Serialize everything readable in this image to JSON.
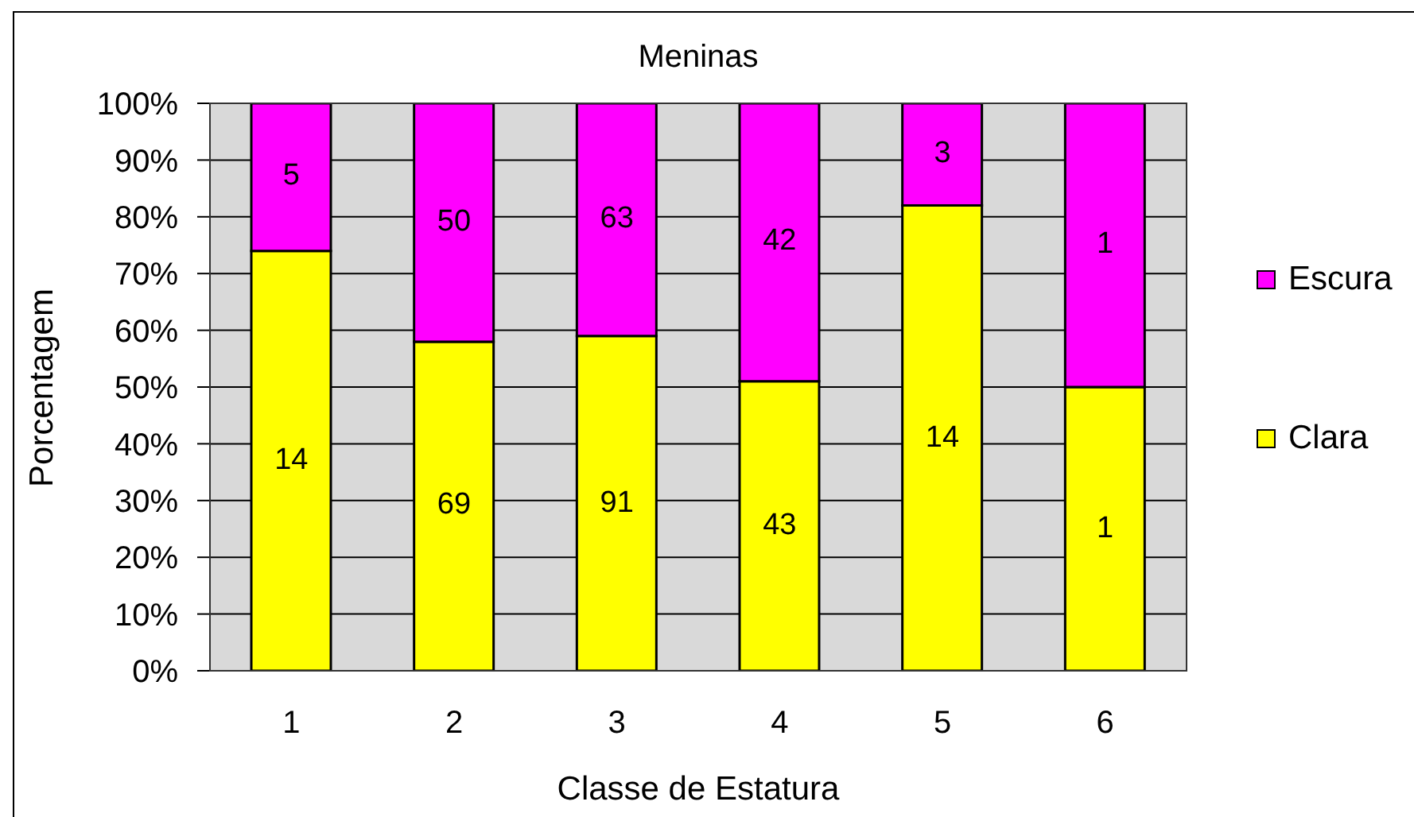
{
  "chart_data": {
    "type": "bar",
    "title": "Meninas",
    "xlabel": "Classe de Estatura",
    "ylabel": "Porcentagem",
    "categories": [
      "1",
      "2",
      "3",
      "4",
      "5",
      "6"
    ],
    "series": [
      {
        "name": "Clara",
        "color": "#ffff00",
        "values": [
          74,
          58,
          59,
          51,
          82,
          50
        ]
      },
      {
        "name": "Escura",
        "color": "#ff00ff",
        "values": [
          26,
          42,
          41,
          49,
          18,
          50
        ]
      }
    ],
    "stacked": true,
    "ylim": [
      0,
      100
    ],
    "yticks": [
      {
        "value": 0,
        "label": "0%"
      },
      {
        "value": 10,
        "label": "10%"
      },
      {
        "value": 20,
        "label": "20%"
      },
      {
        "value": 30,
        "label": "30%"
      },
      {
        "value": 40,
        "label": "40%"
      },
      {
        "value": 50,
        "label": "50%"
      },
      {
        "value": 60,
        "label": "60%"
      },
      {
        "value": 70,
        "label": "70%"
      },
      {
        "value": 80,
        "label": "80%"
      },
      {
        "value": 90,
        "label": "90%"
      },
      {
        "value": 100,
        "label": "100%"
      }
    ],
    "annotations": [
      "14",
      "69",
      "91",
      "43",
      "14",
      "1",
      "5",
      "50",
      "63",
      "42",
      "3",
      "1"
    ],
    "grid": "y",
    "legend": "right"
  }
}
